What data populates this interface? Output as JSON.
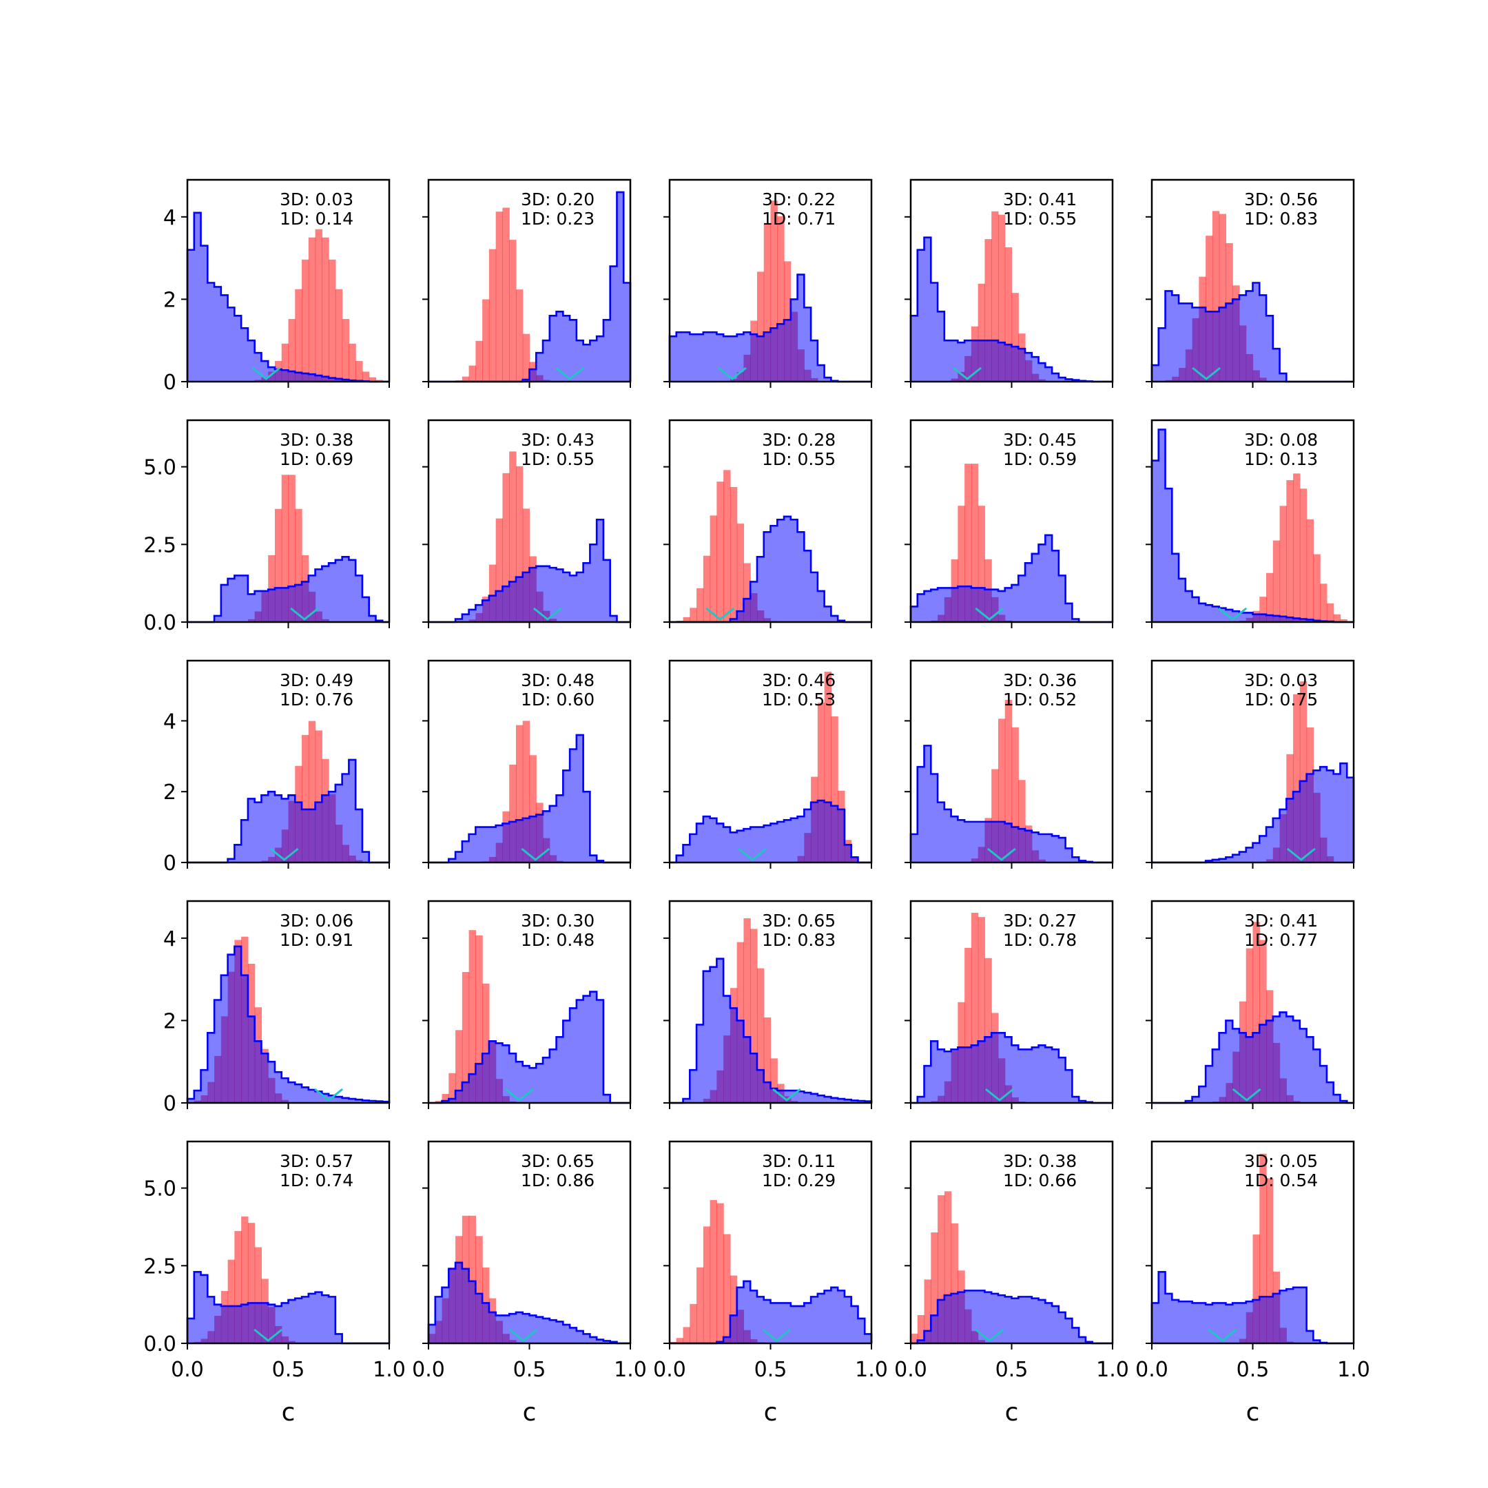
{
  "chart_data": {
    "type": "histogram-grid",
    "rows": 5,
    "cols": 5,
    "xlabel": "c",
    "xlim": [
      0,
      1
    ],
    "xticks": [
      "0.0",
      "0.5",
      "1.0"
    ],
    "row_ylims": [
      [
        0,
        4.9
      ],
      [
        0,
        6.5
      ],
      [
        0,
        5.7
      ],
      [
        0,
        4.9
      ],
      [
        0,
        6.5
      ]
    ],
    "row_yticks": [
      [
        "0",
        "2",
        "4"
      ],
      [
        "0.0",
        "2.5",
        "5.0"
      ],
      [
        "0",
        "2",
        "4"
      ],
      [
        "0",
        "2",
        "4"
      ],
      [
        "0.0",
        "2.5",
        "5.0"
      ]
    ],
    "colors": {
      "red": "#ff0000",
      "blue": "#0000ff",
      "marker": "#22c4c4"
    },
    "panels": [
      {
        "annotation": [
          "3D: 0.03",
          "1D: 0.14"
        ],
        "marker": 0.39,
        "red": {
          "mu": 0.65,
          "sigma": 0.1,
          "peak": 3.7
        },
        "blue": [
          3.2,
          4.1,
          3.3,
          2.4,
          2.3,
          2.1,
          1.8,
          1.6,
          1.3,
          1.0,
          0.7,
          0.5,
          0.35,
          0.3,
          0.28,
          0.25,
          0.22,
          0.2,
          0.18,
          0.15,
          0.12,
          0.09,
          0.07,
          0.05,
          0.03,
          0.02,
          0.01,
          0.0,
          0.0,
          0.0
        ]
      },
      {
        "annotation": [
          "3D: 0.20",
          "1D: 0.23"
        ],
        "marker": 0.7,
        "red": {
          "mu": 0.37,
          "sigma": 0.07,
          "peak": 4.3
        },
        "blue": [
          0,
          0,
          0,
          0,
          0,
          0,
          0,
          0,
          0,
          0,
          0,
          0,
          0,
          0,
          0.05,
          0.3,
          0.7,
          1.0,
          1.6,
          1.7,
          1.6,
          1.5,
          1.0,
          0.9,
          1.0,
          1.1,
          1.5,
          2.8,
          4.6,
          2.4
        ]
      },
      {
        "annotation": [
          "3D: 0.22",
          "1D: 0.71"
        ],
        "marker": 0.31,
        "red": {
          "mu": 0.52,
          "sigma": 0.07,
          "peak": 4.4
        },
        "blue": [
          1.1,
          1.2,
          1.2,
          1.15,
          1.15,
          1.2,
          1.2,
          1.15,
          1.1,
          1.1,
          1.15,
          1.2,
          1.15,
          1.1,
          1.2,
          1.3,
          1.4,
          1.5,
          2.0,
          2.6,
          1.8,
          1.0,
          0.4,
          0.1,
          0.02,
          0,
          0,
          0,
          0,
          0
        ]
      },
      {
        "annotation": [
          "3D: 0.41",
          "1D: 0.55"
        ],
        "marker": 0.28,
        "red": {
          "mu": 0.43,
          "sigma": 0.075,
          "peak": 4.2
        },
        "blue": [
          1.6,
          3.2,
          3.5,
          2.4,
          1.7,
          1.0,
          1.0,
          0.95,
          1.0,
          1.0,
          1.0,
          1.0,
          1.0,
          0.95,
          0.9,
          0.85,
          0.8,
          0.7,
          0.6,
          0.45,
          0.35,
          0.2,
          0.1,
          0.06,
          0.04,
          0.02,
          0.01,
          0,
          0,
          0
        ]
      },
      {
        "annotation": [
          "3D: 0.56",
          "1D: 0.83"
        ],
        "marker": 0.27,
        "red": {
          "mu": 0.33,
          "sigma": 0.08,
          "peak": 4.2
        },
        "blue": [
          0.4,
          1.3,
          2.2,
          2.1,
          1.9,
          1.9,
          1.8,
          1.8,
          1.7,
          1.7,
          1.8,
          1.9,
          2.0,
          2.1,
          2.2,
          2.4,
          2.1,
          1.6,
          0.8,
          0.2,
          0,
          0,
          0,
          0,
          0,
          0,
          0,
          0,
          0,
          0
        ]
      },
      {
        "annotation": [
          "3D: 0.38",
          "1D: 0.69"
        ],
        "marker": 0.58,
        "red": {
          "mu": 0.5,
          "sigma": 0.065,
          "peak": 4.9
        },
        "blue": [
          0,
          0,
          0,
          0,
          0.2,
          1.2,
          1.4,
          1.5,
          1.5,
          0.9,
          1.0,
          1.0,
          1.05,
          1.1,
          1.1,
          1.15,
          1.2,
          1.3,
          1.5,
          1.7,
          1.8,
          1.9,
          2.0,
          2.1,
          2.0,
          1.5,
          0.8,
          0.2,
          0.05,
          0
        ]
      },
      {
        "annotation": [
          "3D: 0.43",
          "1D: 0.55"
        ],
        "marker": 0.59,
        "red": {
          "mu": 0.42,
          "sigma": 0.07,
          "peak": 5.5
        },
        "blue": [
          0,
          0,
          0,
          0,
          0.1,
          0.25,
          0.4,
          0.55,
          0.7,
          0.85,
          1.0,
          1.15,
          1.3,
          1.45,
          1.6,
          1.75,
          1.8,
          1.8,
          1.75,
          1.7,
          1.6,
          1.5,
          1.6,
          1.9,
          2.5,
          3.3,
          2.0,
          0.2,
          0,
          0
        ]
      },
      {
        "annotation": [
          "3D: 0.28",
          "1D: 0.55"
        ],
        "marker": 0.25,
        "red": {
          "mu": 0.28,
          "sigma": 0.075,
          "peak": 4.9
        },
        "blue": [
          0,
          0,
          0,
          0,
          0,
          0,
          0,
          0,
          0,
          0.1,
          0.35,
          0.75,
          1.3,
          2.1,
          2.9,
          3.1,
          3.3,
          3.4,
          3.3,
          2.9,
          2.3,
          1.6,
          1.0,
          0.5,
          0.2,
          0.05,
          0,
          0,
          0,
          0
        ]
      },
      {
        "annotation": [
          "3D: 0.45",
          "1D: 0.59"
        ],
        "marker": 0.39,
        "red": {
          "mu": 0.3,
          "sigma": 0.06,
          "peak": 5.3
        },
        "blue": [
          0.5,
          0.9,
          1.0,
          1.05,
          1.1,
          1.1,
          1.1,
          1.15,
          1.15,
          1.1,
          1.1,
          1.05,
          1.05,
          1.0,
          1.1,
          1.2,
          1.5,
          1.9,
          2.2,
          2.5,
          2.8,
          2.3,
          1.5,
          0.6,
          0.1,
          0,
          0,
          0,
          0,
          0
        ]
      },
      {
        "annotation": [
          "3D: 0.08",
          "1D: 0.13"
        ],
        "marker": 0.4,
        "red": {
          "mu": 0.71,
          "sigma": 0.085,
          "peak": 4.8
        },
        "blue": [
          5.2,
          6.2,
          4.3,
          2.2,
          1.4,
          1.0,
          0.8,
          0.6,
          0.55,
          0.5,
          0.45,
          0.4,
          0.35,
          0.3,
          0.3,
          0.25,
          0.25,
          0.22,
          0.2,
          0.18,
          0.15,
          0.12,
          0.1,
          0.08,
          0.05,
          0.03,
          0.02,
          0,
          0,
          0
        ]
      },
      {
        "annotation": [
          "3D: 0.49",
          "1D: 0.76"
        ],
        "marker": 0.48,
        "red": {
          "mu": 0.62,
          "sigma": 0.08,
          "peak": 4.0
        },
        "blue": [
          0,
          0,
          0,
          0,
          0,
          0,
          0.1,
          0.5,
          1.2,
          1.8,
          1.7,
          1.9,
          2.0,
          1.9,
          1.8,
          1.9,
          1.7,
          1.5,
          1.5,
          1.7,
          1.9,
          2.0,
          2.2,
          2.5,
          2.9,
          1.5,
          0.3,
          0,
          0,
          0
        ]
      },
      {
        "annotation": [
          "3D: 0.48",
          "1D: 0.60"
        ],
        "marker": 0.53,
        "red": {
          "mu": 0.47,
          "sigma": 0.06,
          "peak": 4.1
        },
        "blue": [
          0,
          0,
          0,
          0.1,
          0.3,
          0.6,
          0.8,
          1.0,
          1.0,
          1.0,
          1.05,
          1.1,
          1.15,
          1.2,
          1.25,
          1.3,
          1.35,
          1.45,
          1.6,
          1.9,
          2.6,
          3.2,
          3.6,
          2.0,
          0.2,
          0.05,
          0,
          0,
          0,
          0
        ]
      },
      {
        "annotation": [
          "3D: 0.46",
          "1D: 0.53"
        ],
        "marker": 0.41,
        "red": {
          "mu": 0.78,
          "sigma": 0.05,
          "peak": 5.4
        },
        "blue": [
          0,
          0.2,
          0.5,
          0.8,
          1.1,
          1.3,
          1.25,
          1.1,
          1.0,
          0.85,
          0.9,
          0.95,
          1.0,
          1.0,
          1.05,
          1.1,
          1.15,
          1.2,
          1.25,
          1.3,
          1.5,
          1.7,
          1.75,
          1.7,
          1.6,
          1.5,
          0.5,
          0.15,
          0,
          0
        ]
      },
      {
        "annotation": [
          "3D: 0.36",
          "1D: 0.52"
        ],
        "marker": 0.45,
        "red": {
          "mu": 0.48,
          "sigma": 0.06,
          "peak": 4.6
        },
        "blue": [
          0.8,
          2.7,
          3.3,
          2.5,
          1.7,
          1.5,
          1.3,
          1.2,
          1.15,
          1.15,
          1.15,
          1.15,
          1.15,
          1.15,
          1.1,
          1.0,
          0.95,
          0.9,
          0.85,
          0.8,
          0.8,
          0.75,
          0.7,
          0.4,
          0.15,
          0.05,
          0.02,
          0,
          0,
          0
        ]
      },
      {
        "annotation": [
          "3D: 0.03",
          "1D: 0.75"
        ],
        "marker": 0.74,
        "red": {
          "mu": 0.74,
          "sigma": 0.055,
          "peak": 5.2
        },
        "blue": [
          0,
          0,
          0,
          0,
          0,
          0,
          0,
          0,
          0.05,
          0.08,
          0.1,
          0.15,
          0.22,
          0.3,
          0.42,
          0.55,
          0.75,
          1.0,
          1.25,
          1.5,
          1.8,
          2.0,
          2.3,
          2.5,
          2.6,
          2.7,
          2.6,
          2.5,
          2.8,
          2.4
        ]
      },
      {
        "annotation": [
          "3D: 0.06",
          "1D: 0.91"
        ],
        "marker": 0.7,
        "red": {
          "mu": 0.27,
          "sigma": 0.075,
          "peak": 4.1
        },
        "blue": [
          0.1,
          0.3,
          0.8,
          1.7,
          2.5,
          3.1,
          3.6,
          3.8,
          3.1,
          2.1,
          1.5,
          1.2,
          1.0,
          0.75,
          0.6,
          0.5,
          0.45,
          0.38,
          0.32,
          0.28,
          0.22,
          0.18,
          0.15,
          0.12,
          0.1,
          0.08,
          0.06,
          0.05,
          0.04,
          0.03
        ]
      },
      {
        "annotation": [
          "3D: 0.30",
          "1D: 0.48"
        ],
        "marker": 0.45,
        "red": {
          "mu": 0.23,
          "sigma": 0.06,
          "peak": 4.3
        },
        "blue": [
          0,
          0,
          0.05,
          0.1,
          0.3,
          0.5,
          0.7,
          0.95,
          1.2,
          1.5,
          1.45,
          1.4,
          1.2,
          1.0,
          0.9,
          0.85,
          0.95,
          1.1,
          1.3,
          1.6,
          2.0,
          2.3,
          2.5,
          2.6,
          2.7,
          2.5,
          0.2,
          0,
          0,
          0
        ]
      },
      {
        "annotation": [
          "3D: 0.65",
          "1D: 0.83"
        ],
        "marker": 0.58,
        "red": {
          "mu": 0.39,
          "sigma": 0.075,
          "peak": 4.5
        },
        "blue": [
          0,
          0,
          0.1,
          0.8,
          1.9,
          3.2,
          3.3,
          3.5,
          2.6,
          2.3,
          2.0,
          1.6,
          1.2,
          0.8,
          0.5,
          0.35,
          0.3,
          0.3,
          0.3,
          0.28,
          0.25,
          0.22,
          0.18,
          0.15,
          0.12,
          0.1,
          0.08,
          0.06,
          0.05,
          0.04
        ]
      },
      {
        "annotation": [
          "3D: 0.27",
          "1D: 0.78"
        ],
        "marker": 0.44,
        "red": {
          "mu": 0.33,
          "sigma": 0.07,
          "peak": 4.7
        },
        "blue": [
          0,
          0.15,
          0.9,
          1.5,
          1.3,
          1.25,
          1.3,
          1.35,
          1.35,
          1.4,
          1.5,
          1.6,
          1.7,
          1.7,
          1.6,
          1.4,
          1.3,
          1.3,
          1.35,
          1.4,
          1.35,
          1.3,
          1.1,
          0.8,
          0.15,
          0.05,
          0.02,
          0,
          0,
          0
        ]
      },
      {
        "annotation": [
          "3D: 0.41",
          "1D: 0.77"
        ],
        "marker": 0.47,
        "red": {
          "mu": 0.52,
          "sigma": 0.065,
          "peak": 4.4
        },
        "blue": [
          0,
          0,
          0,
          0,
          0,
          0.05,
          0.15,
          0.4,
          0.9,
          1.3,
          1.7,
          2.0,
          1.8,
          1.7,
          1.6,
          1.7,
          1.9,
          2.0,
          2.1,
          2.2,
          2.1,
          2.0,
          1.8,
          1.6,
          1.3,
          0.9,
          0.5,
          0.2,
          0.05,
          0
        ]
      },
      {
        "annotation": [
          "3D: 0.57",
          "1D: 0.74"
        ],
        "marker": 0.4,
        "red": {
          "mu": 0.29,
          "sigma": 0.08,
          "peak": 4.1
        },
        "blue": [
          0.8,
          2.3,
          2.2,
          1.5,
          1.25,
          1.2,
          1.2,
          1.2,
          1.25,
          1.3,
          1.3,
          1.3,
          1.25,
          1.2,
          1.3,
          1.4,
          1.45,
          1.5,
          1.6,
          1.65,
          1.55,
          1.5,
          0.3,
          0,
          0,
          0,
          0,
          0,
          0,
          0
        ]
      },
      {
        "annotation": [
          "3D: 0.65",
          "1D: 0.86"
        ],
        "marker": 0.47,
        "red": {
          "mu": 0.2,
          "sigma": 0.08,
          "peak": 4.2
        },
        "blue": [
          0.6,
          1.5,
          1.8,
          2.4,
          2.6,
          2.4,
          2.0,
          1.6,
          1.3,
          1.0,
          0.9,
          0.9,
          0.95,
          1.0,
          0.95,
          0.9,
          0.85,
          0.8,
          0.75,
          0.7,
          0.6,
          0.5,
          0.4,
          0.3,
          0.2,
          0.12,
          0.08,
          0.05,
          0,
          0
        ]
      },
      {
        "annotation": [
          "3D: 0.11",
          "1D: 0.29"
        ],
        "marker": 0.53,
        "red": {
          "mu": 0.23,
          "sigma": 0.07,
          "peak": 4.7
        },
        "blue": [
          0,
          0,
          0,
          0,
          0,
          0,
          0,
          0.05,
          0.2,
          0.9,
          1.8,
          2.0,
          1.7,
          1.5,
          1.4,
          1.3,
          1.3,
          1.3,
          1.2,
          1.2,
          1.3,
          1.5,
          1.6,
          1.7,
          1.8,
          1.7,
          1.5,
          1.2,
          0.8,
          0.3
        ]
      },
      {
        "annotation": [
          "3D: 0.38",
          "1D: 0.66"
        ],
        "marker": 0.39,
        "red": {
          "mu": 0.17,
          "sigma": 0.065,
          "peak": 5.0
        },
        "blue": [
          0,
          0.1,
          0.4,
          0.9,
          1.4,
          1.55,
          1.6,
          1.65,
          1.7,
          1.7,
          1.7,
          1.65,
          1.6,
          1.55,
          1.5,
          1.45,
          1.5,
          1.5,
          1.45,
          1.4,
          1.3,
          1.2,
          1.0,
          0.8,
          0.5,
          0.2,
          0.05,
          0,
          0,
          0
        ]
      },
      {
        "annotation": [
          "3D: 0.05",
          "1D: 0.54"
        ],
        "marker": 0.35,
        "red": {
          "mu": 0.56,
          "sigma": 0.04,
          "peak": 6.3
        },
        "blue": [
          1.3,
          2.3,
          1.6,
          1.4,
          1.35,
          1.35,
          1.3,
          1.3,
          1.25,
          1.3,
          1.3,
          1.25,
          1.3,
          1.3,
          1.35,
          1.4,
          1.5,
          1.5,
          1.6,
          1.7,
          1.75,
          1.8,
          1.8,
          0.4,
          0.1,
          0.02,
          0,
          0,
          0,
          0
        ]
      }
    ]
  }
}
